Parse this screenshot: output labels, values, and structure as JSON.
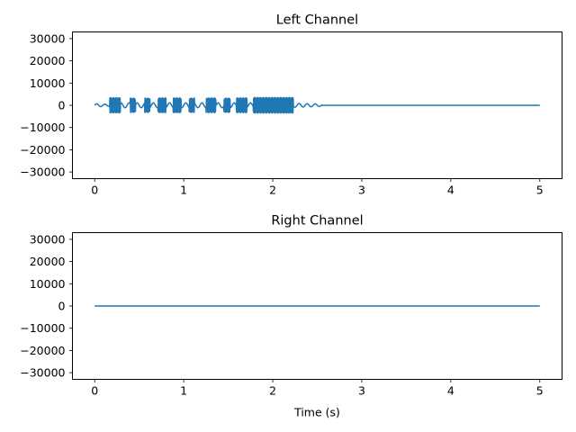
{
  "chart_data": [
    {
      "type": "line",
      "title": "Left Channel",
      "xlabel": "",
      "ylabel": "",
      "xlim": [
        -0.25,
        5.25
      ],
      "ylim": [
        -33000,
        33000
      ],
      "xticks": [
        0,
        1,
        2,
        3,
        4,
        5
      ],
      "xtick_labels": [
        "0",
        "1",
        "2",
        "3",
        "4",
        "5"
      ],
      "yticks": [
        30000,
        20000,
        10000,
        0,
        -10000,
        -20000,
        -30000
      ],
      "ytick_labels": [
        "30000",
        "20000",
        "10000",
        "0",
        "−10000",
        "−20000",
        "−30000"
      ],
      "grid": false,
      "line_color": "#1f77b4",
      "baseline": 0,
      "signal_end": 2.55,
      "duration": 5,
      "bursts": [
        {
          "start": 0.17,
          "end": 0.29,
          "amplitude": 3400
        },
        {
          "start": 0.4,
          "end": 0.46,
          "amplitude": 3200
        },
        {
          "start": 0.56,
          "end": 0.62,
          "amplitude": 3200
        },
        {
          "start": 0.71,
          "end": 0.8,
          "amplitude": 3300
        },
        {
          "start": 0.88,
          "end": 0.97,
          "amplitude": 3300
        },
        {
          "start": 1.06,
          "end": 1.12,
          "amplitude": 3200
        },
        {
          "start": 1.25,
          "end": 1.36,
          "amplitude": 3300
        },
        {
          "start": 1.45,
          "end": 1.52,
          "amplitude": 3200
        },
        {
          "start": 1.59,
          "end": 1.71,
          "amplitude": 3300
        },
        {
          "start": 1.78,
          "end": 2.23,
          "amplitude": 3500
        }
      ],
      "quiet_ripple": [
        {
          "start": 0.0,
          "end": 0.17,
          "amplitude": 700
        },
        {
          "start": 2.23,
          "end": 2.55,
          "amplitude": 900
        }
      ],
      "inter_burst_amplitude": 1100
    },
    {
      "type": "line",
      "title": "Right Channel",
      "xlabel": "Time (s)",
      "ylabel": "",
      "xlim": [
        -0.25,
        5.25
      ],
      "ylim": [
        -33000,
        33000
      ],
      "xticks": [
        0,
        1,
        2,
        3,
        4,
        5
      ],
      "xtick_labels": [
        "0",
        "1",
        "2",
        "3",
        "4",
        "5"
      ],
      "yticks": [
        30000,
        20000,
        10000,
        0,
        -10000,
        -20000,
        -30000
      ],
      "ytick_labels": [
        "30000",
        "20000",
        "10000",
        "0",
        "−10000",
        "−20000",
        "−30000"
      ],
      "grid": false,
      "line_color": "#1f77b4",
      "x": [
        0,
        5
      ],
      "y": [
        0,
        0
      ]
    }
  ]
}
